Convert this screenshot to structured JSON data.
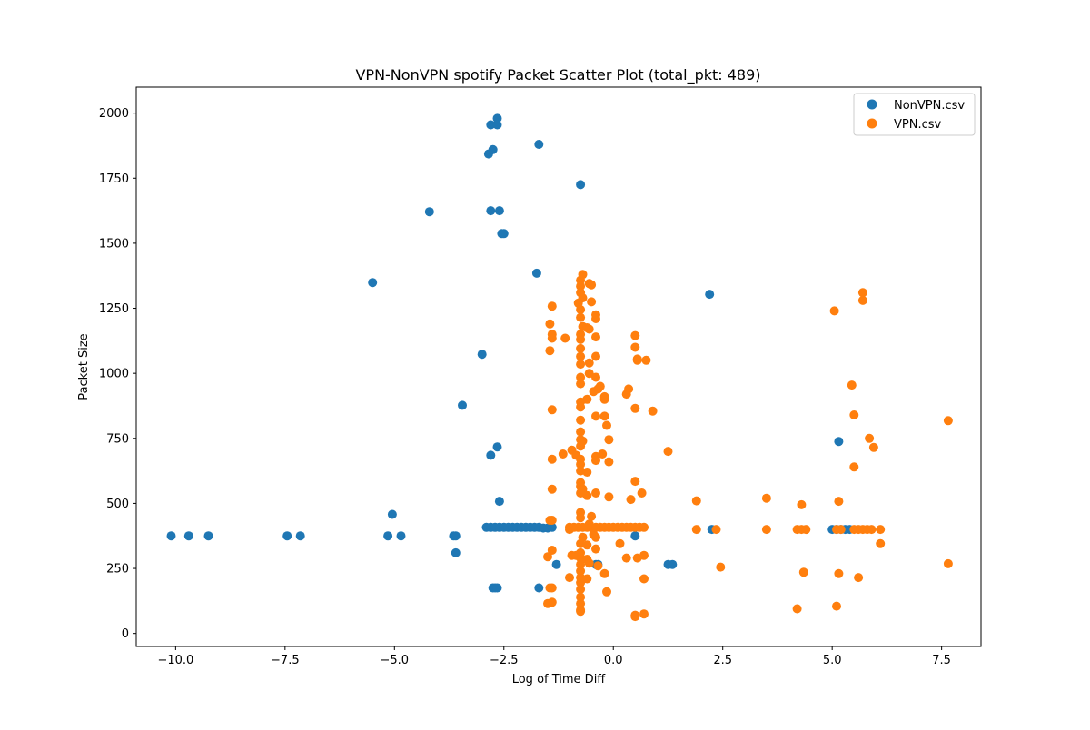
{
  "chart_data": {
    "type": "scatter",
    "title": "VPN-NonVPN spotify Packet Scatter Plot (total_pkt: 489)",
    "xlabel": "Log of Time Diff",
    "ylabel": "Packet Size",
    "xlim": [
      -10.9,
      8.4
    ],
    "ylim": [
      -50,
      2100
    ],
    "xticks": [
      -10.0,
      -7.5,
      -5.0,
      -2.5,
      0.0,
      2.5,
      5.0,
      7.5
    ],
    "xtick_labels": [
      "−10.0",
      "−7.5",
      "−5.0",
      "−2.5",
      "0.0",
      "2.5",
      "5.0",
      "7.5"
    ],
    "yticks": [
      0,
      250,
      500,
      750,
      1000,
      1250,
      1500,
      1750,
      2000
    ],
    "ytick_labels": [
      "0",
      "250",
      "500",
      "750",
      "1000",
      "1250",
      "1500",
      "1750",
      "2000"
    ],
    "grid": false,
    "legend_position": "top-right",
    "series": [
      {
        "name": "NonVPN.csv",
        "color": "#1f77b4",
        "points": [
          [
            -10.1,
            375
          ],
          [
            -9.7,
            375
          ],
          [
            -9.25,
            375
          ],
          [
            -7.45,
            375
          ],
          [
            -7.15,
            375
          ],
          [
            -5.15,
            375
          ],
          [
            -5.05,
            458
          ],
          [
            -4.85,
            375
          ],
          [
            -3.65,
            375
          ],
          [
            -3.6,
            375
          ],
          [
            -3.6,
            310
          ],
          [
            -3.45,
            877
          ],
          [
            -5.5,
            1349
          ],
          [
            -4.2,
            1621
          ],
          [
            -3.0,
            1073
          ],
          [
            -2.85,
            1843
          ],
          [
            -2.8,
            1955
          ],
          [
            -2.8,
            1625
          ],
          [
            -2.75,
            1860
          ],
          [
            -2.65,
            1980
          ],
          [
            -2.65,
            1955
          ],
          [
            -2.6,
            1625
          ],
          [
            -2.5,
            1537
          ],
          [
            -2.55,
            1537
          ],
          [
            -2.8,
            685
          ],
          [
            -2.65,
            717
          ],
          [
            -2.6,
            508
          ],
          [
            -2.75,
            175
          ],
          [
            -2.7,
            175
          ],
          [
            -2.65,
            175
          ],
          [
            -1.75,
            1385
          ],
          [
            -1.7,
            1880
          ],
          [
            -1.7,
            175
          ],
          [
            -1.3,
            265
          ],
          [
            -0.75,
            1725
          ],
          [
            -0.4,
            265
          ],
          [
            -0.35,
            265
          ],
          [
            0.5,
            375
          ],
          [
            1.25,
            265
          ],
          [
            1.35,
            265
          ],
          [
            2.2,
            1304
          ],
          [
            2.25,
            400
          ],
          [
            5.15,
            738
          ],
          [
            5.0,
            400
          ],
          [
            -2.9,
            408
          ],
          [
            -2.8,
            408
          ],
          [
            -2.7,
            408
          ],
          [
            -2.6,
            408
          ],
          [
            -2.5,
            408
          ],
          [
            -2.4,
            408
          ],
          [
            -2.3,
            408
          ],
          [
            -2.2,
            408
          ],
          [
            -2.1,
            408
          ],
          [
            -2.0,
            408
          ],
          [
            -1.9,
            408
          ],
          [
            -1.8,
            408
          ],
          [
            -1.7,
            408
          ],
          [
            -1.6,
            405
          ],
          [
            -1.5,
            405
          ],
          [
            -1.4,
            408
          ],
          [
            5.1,
            400
          ],
          [
            5.2,
            400
          ],
          [
            5.3,
            400
          ],
          [
            5.4,
            400
          ]
        ]
      },
      {
        "name": "VPN.csv",
        "color": "#ff7f0e",
        "points": [
          [
            -0.75,
            1358
          ],
          [
            -0.75,
            1335
          ],
          [
            -0.75,
            1310
          ],
          [
            -0.7,
            1290
          ],
          [
            -0.8,
            1270
          ],
          [
            -0.75,
            1245
          ],
          [
            -0.75,
            1215
          ],
          [
            -0.7,
            1180
          ],
          [
            -0.75,
            1150
          ],
          [
            -0.75,
            1130
          ],
          [
            -0.75,
            1095
          ],
          [
            -0.75,
            1065
          ],
          [
            -0.75,
            1035
          ],
          [
            -0.75,
            985
          ],
          [
            -0.75,
            960
          ],
          [
            -0.75,
            890
          ],
          [
            -0.75,
            870
          ],
          [
            -0.75,
            820
          ],
          [
            -0.75,
            775
          ],
          [
            -0.75,
            745
          ],
          [
            -0.75,
            720
          ],
          [
            -0.75,
            670
          ],
          [
            -0.75,
            650
          ],
          [
            -0.75,
            625
          ],
          [
            -0.75,
            580
          ],
          [
            -0.75,
            565
          ],
          [
            -0.75,
            540
          ],
          [
            -0.75,
            465
          ],
          [
            -0.75,
            445
          ],
          [
            -0.75,
            345
          ],
          [
            -0.75,
            310
          ],
          [
            -0.75,
            290
          ],
          [
            -0.75,
            265
          ],
          [
            -0.75,
            240
          ],
          [
            -0.75,
            215
          ],
          [
            -0.75,
            195
          ],
          [
            -0.75,
            170
          ],
          [
            -0.75,
            140
          ],
          [
            -0.75,
            115
          ],
          [
            -0.75,
            90
          ],
          [
            -0.75,
            85
          ],
          [
            -0.7,
            740
          ],
          [
            -0.7,
            555
          ],
          [
            -0.7,
            370
          ],
          [
            -0.7,
            1380
          ],
          [
            -1.4,
            1258
          ],
          [
            -1.45,
            1190
          ],
          [
            -1.4,
            1150
          ],
          [
            -1.4,
            1135
          ],
          [
            -1.45,
            1087
          ],
          [
            -1.4,
            860
          ],
          [
            -1.4,
            670
          ],
          [
            -1.4,
            555
          ],
          [
            -1.45,
            435
          ],
          [
            -1.4,
            435
          ],
          [
            -1.4,
            320
          ],
          [
            -1.5,
            295
          ],
          [
            -1.45,
            175
          ],
          [
            -1.4,
            175
          ],
          [
            -1.5,
            115
          ],
          [
            -1.4,
            120
          ],
          [
            -1.1,
            1135
          ],
          [
            -1.15,
            690
          ],
          [
            -0.95,
            705
          ],
          [
            -1.0,
            400
          ],
          [
            -0.95,
            300
          ],
          [
            -1.0,
            215
          ],
          [
            -0.85,
            685
          ],
          [
            -0.85,
            300
          ],
          [
            -0.55,
            1345
          ],
          [
            -0.5,
            1340
          ],
          [
            -0.5,
            1275
          ],
          [
            -0.6,
            1175
          ],
          [
            -0.55,
            1170
          ],
          [
            -0.4,
            1225
          ],
          [
            -0.4,
            1210
          ],
          [
            -0.4,
            1140
          ],
          [
            -0.4,
            1065
          ],
          [
            -0.55,
            1040
          ],
          [
            -0.55,
            1000
          ],
          [
            -0.4,
            985
          ],
          [
            -0.45,
            930
          ],
          [
            -0.3,
            950
          ],
          [
            -0.35,
            940
          ],
          [
            -0.2,
            910
          ],
          [
            -0.2,
            900
          ],
          [
            -0.6,
            900
          ],
          [
            -0.4,
            835
          ],
          [
            -0.2,
            835
          ],
          [
            -0.15,
            800
          ],
          [
            -0.1,
            745
          ],
          [
            -0.25,
            690
          ],
          [
            -0.4,
            680
          ],
          [
            -0.4,
            665
          ],
          [
            -0.1,
            660
          ],
          [
            -0.6,
            620
          ],
          [
            -0.4,
            540
          ],
          [
            -0.1,
            525
          ],
          [
            -0.6,
            530
          ],
          [
            -0.5,
            450
          ],
          [
            -0.55,
            420
          ],
          [
            -0.45,
            380
          ],
          [
            -0.4,
            370
          ],
          [
            -0.6,
            340
          ],
          [
            -0.4,
            325
          ],
          [
            -0.6,
            285
          ],
          [
            -0.55,
            270
          ],
          [
            -0.35,
            260
          ],
          [
            -0.2,
            230
          ],
          [
            -0.6,
            210
          ],
          [
            -0.15,
            160
          ],
          [
            0.15,
            345
          ],
          [
            0.3,
            920
          ],
          [
            0.35,
            940
          ],
          [
            0.3,
            290
          ],
          [
            0.4,
            515
          ],
          [
            0.5,
            585
          ],
          [
            0.5,
            865
          ],
          [
            0.55,
            1055
          ],
          [
            0.55,
            1050
          ],
          [
            0.5,
            1100
          ],
          [
            0.5,
            1145
          ],
          [
            0.65,
            540
          ],
          [
            0.55,
            290
          ],
          [
            0.7,
            300
          ],
          [
            0.7,
            210
          ],
          [
            0.5,
            70
          ],
          [
            0.5,
            65
          ],
          [
            0.7,
            75
          ],
          [
            0.75,
            1050
          ],
          [
            0.9,
            855
          ],
          [
            1.25,
            700
          ],
          [
            1.9,
            510
          ],
          [
            2.45,
            255
          ],
          [
            3.5,
            520
          ],
          [
            4.3,
            495
          ],
          [
            4.2,
            95
          ],
          [
            4.35,
            235
          ],
          [
            5.05,
            1240
          ],
          [
            5.15,
            508
          ],
          [
            5.15,
            230
          ],
          [
            5.1,
            105
          ],
          [
            5.45,
            955
          ],
          [
            5.5,
            840
          ],
          [
            5.5,
            640
          ],
          [
            5.6,
            215
          ],
          [
            5.7,
            1310
          ],
          [
            5.7,
            1280
          ],
          [
            5.85,
            750
          ],
          [
            5.95,
            715
          ],
          [
            6.1,
            345
          ],
          [
            7.65,
            818
          ],
          [
            7.65,
            268
          ],
          [
            -1.0,
            408
          ],
          [
            -0.9,
            408
          ],
          [
            -0.8,
            408
          ],
          [
            -0.7,
            408
          ],
          [
            -0.6,
            408
          ],
          [
            -0.5,
            408
          ],
          [
            -0.4,
            408
          ],
          [
            -0.3,
            408
          ],
          [
            -0.2,
            408
          ],
          [
            -0.1,
            408
          ],
          [
            0.0,
            408
          ],
          [
            0.1,
            408
          ],
          [
            0.2,
            408
          ],
          [
            0.3,
            408
          ],
          [
            0.4,
            408
          ],
          [
            0.5,
            408
          ],
          [
            0.6,
            408
          ],
          [
            0.7,
            408
          ],
          [
            1.9,
            400
          ],
          [
            2.35,
            400
          ],
          [
            3.5,
            400
          ],
          [
            4.2,
            400
          ],
          [
            4.3,
            400
          ],
          [
            4.4,
            400
          ],
          [
            5.1,
            400
          ],
          [
            5.2,
            400
          ],
          [
            5.5,
            400
          ],
          [
            5.6,
            400
          ],
          [
            5.7,
            400
          ],
          [
            5.8,
            400
          ],
          [
            5.9,
            400
          ],
          [
            6.1,
            400
          ]
        ]
      }
    ]
  }
}
